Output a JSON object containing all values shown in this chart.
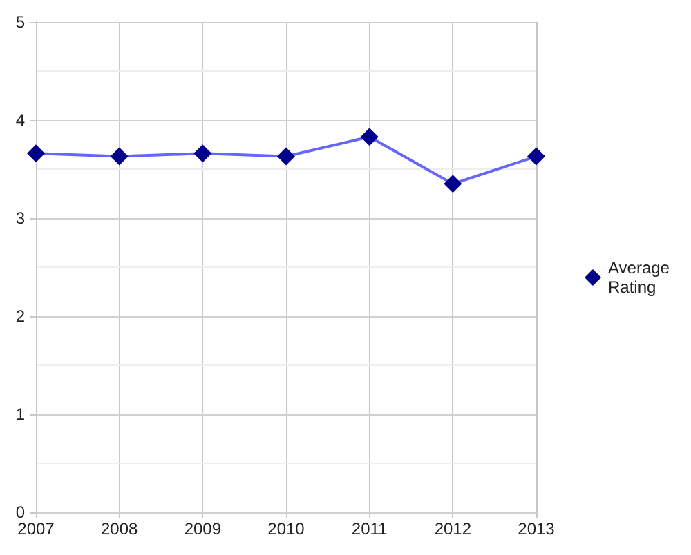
{
  "chart_data": {
    "type": "line",
    "categories": [
      "2007",
      "2008",
      "2009",
      "2010",
      "2011",
      "2012",
      "2013"
    ],
    "series": [
      {
        "name": "Average Rating",
        "color": "#00008b",
        "values": [
          3.66,
          3.63,
          3.66,
          3.63,
          3.83,
          3.35,
          3.63
        ]
      }
    ],
    "ylim": [
      0,
      5
    ],
    "yticks": [
      0,
      {
        "value": 0.5,
        "label": null
      },
      1,
      {
        "value": 1.5,
        "label": null
      },
      2,
      {
        "value": 2.5,
        "label": null
      },
      3,
      {
        "value": 3.5,
        "label": null
      },
      4,
      {
        "value": 4.5,
        "label": null
      },
      5
    ],
    "grid": true,
    "legend": "right",
    "marker": "diamond",
    "line_style": "solid"
  }
}
